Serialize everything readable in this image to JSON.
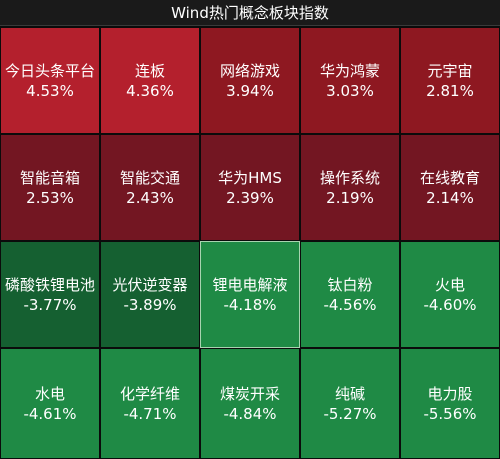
{
  "header": {
    "title": "Wind热门概念板块指数"
  },
  "tiles": [
    {
      "name": "今日头条平台",
      "change": "4.53%",
      "color": "#b4202d"
    },
    {
      "name": "连板",
      "change": "4.36%",
      "color": "#b4202d"
    },
    {
      "name": "网络游戏",
      "change": "3.94%",
      "color": "#8e1821"
    },
    {
      "name": "华为鸿蒙",
      "change": "3.03%",
      "color": "#8e1821"
    },
    {
      "name": "元宇宙",
      "change": "2.81%",
      "color": "#8e1821"
    },
    {
      "name": "智能音箱",
      "change": "2.53%",
      "color": "#731622"
    },
    {
      "name": "智能交通",
      "change": "2.43%",
      "color": "#731622"
    },
    {
      "name": "华为HMS",
      "change": "2.39%",
      "color": "#731622"
    },
    {
      "name": "操作系统",
      "change": "2.19%",
      "color": "#731622"
    },
    {
      "name": "在线教育",
      "change": "2.14%",
      "color": "#731622"
    },
    {
      "name": "磷酸铁锂电池",
      "change": "-3.77%",
      "color": "#156031"
    },
    {
      "name": "光伏逆变器",
      "change": "-3.89%",
      "color": "#156031"
    },
    {
      "name": "锂电电解液",
      "change": "-4.18%",
      "color": "#1f8a45"
    },
    {
      "name": "钛白粉",
      "change": "-4.56%",
      "color": "#1f8a45"
    },
    {
      "name": "火电",
      "change": "-4.60%",
      "color": "#1f8a45"
    },
    {
      "name": "水电",
      "change": "-4.61%",
      "color": "#1f8a45"
    },
    {
      "name": "化学纤维",
      "change": "-4.71%",
      "color": "#1f8a45"
    },
    {
      "name": "煤炭开采",
      "change": "-4.84%",
      "color": "#1f8a45"
    },
    {
      "name": "纯碱",
      "change": "-5.27%",
      "color": "#1f8a45"
    },
    {
      "name": "电力股",
      "change": "-5.56%",
      "color": "#1f8a45"
    }
  ]
}
